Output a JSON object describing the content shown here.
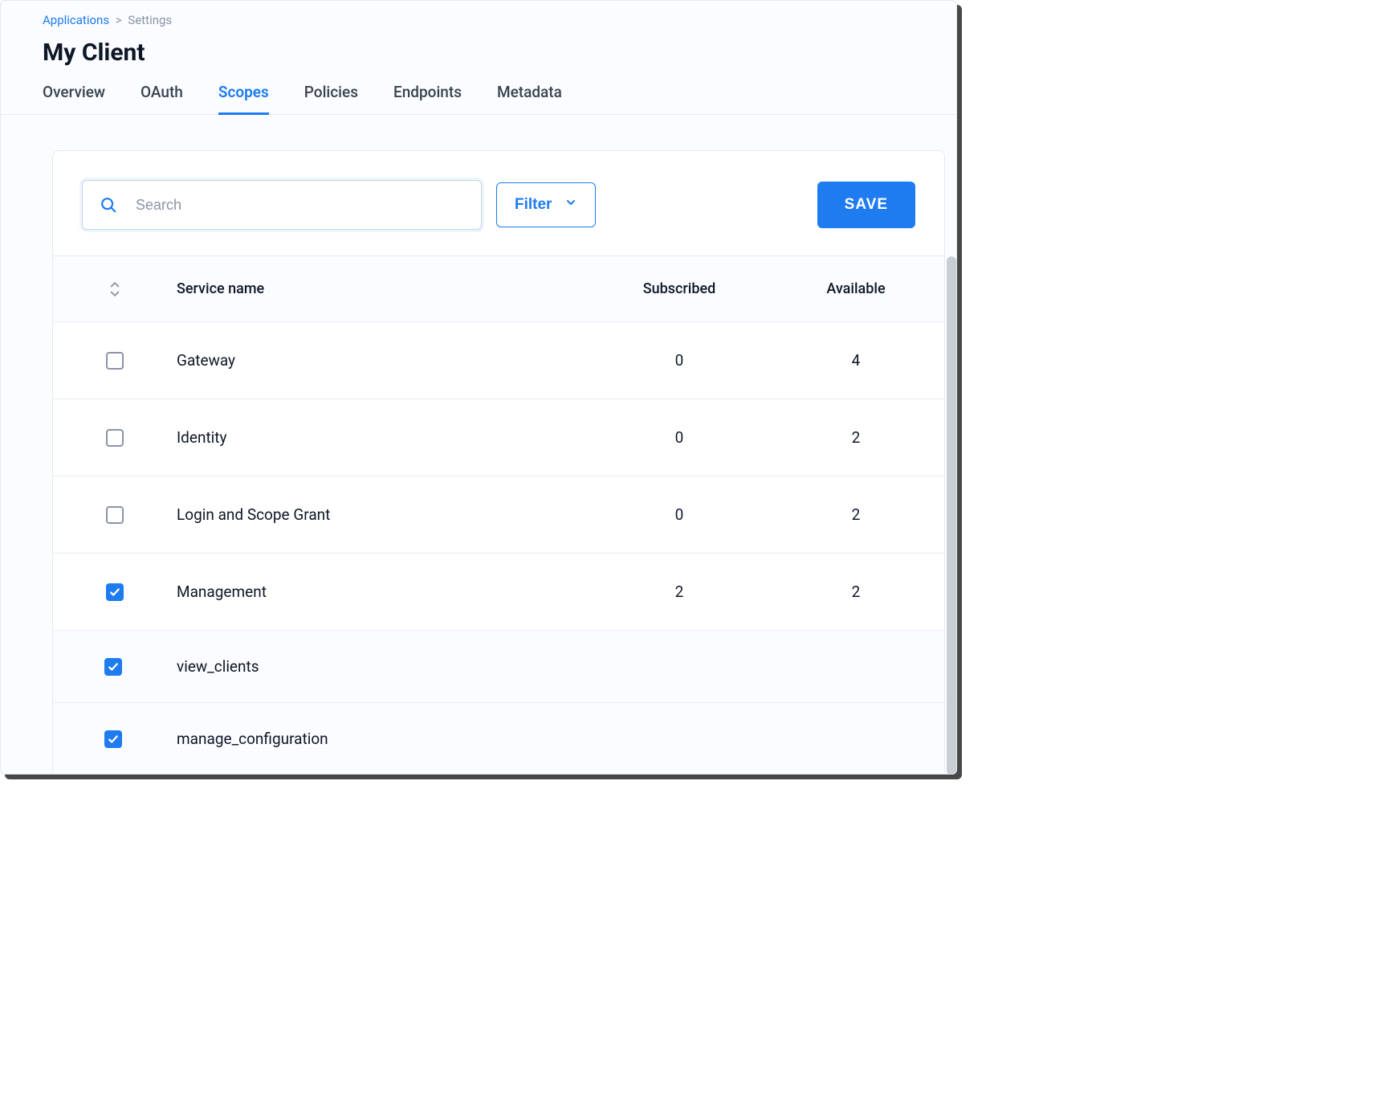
{
  "colors": {
    "primary": "#1e7bf0",
    "text": "#0e1726",
    "muted": "#8a94a6",
    "border": "#e3e9f2",
    "row_border": "#e8edf5",
    "page_bg": "#fafcff",
    "card_bg": "#ffffff",
    "subrow_bg": "#fafcff",
    "scrollbar_thumb": "#c9cdd4"
  },
  "breadcrumb": {
    "root": "Applications",
    "current": "Settings"
  },
  "page_title": "My Client",
  "tabs": [
    {
      "label": "Overview",
      "active": false
    },
    {
      "label": "OAuth",
      "active": false
    },
    {
      "label": "Scopes",
      "active": true
    },
    {
      "label": "Policies",
      "active": false
    },
    {
      "label": "Endpoints",
      "active": false
    },
    {
      "label": "Metadata",
      "active": false
    }
  ],
  "toolbar": {
    "search_placeholder": "Search",
    "search_value": "",
    "filter_label": "Filter",
    "save_label": "SAVE"
  },
  "table": {
    "columns": {
      "service_name": "Service name",
      "subscribed": "Subscribed",
      "available": "Available"
    },
    "rows": [
      {
        "checked": false,
        "name": "Gateway",
        "subscribed": 0,
        "available": 4,
        "expanded": false,
        "children": []
      },
      {
        "checked": false,
        "name": "Identity",
        "subscribed": 0,
        "available": 2,
        "expanded": false,
        "children": []
      },
      {
        "checked": false,
        "name": "Login and Scope Grant",
        "subscribed": 0,
        "available": 2,
        "expanded": false,
        "children": []
      },
      {
        "checked": true,
        "name": "Management",
        "subscribed": 2,
        "available": 2,
        "expanded": true,
        "children": [
          {
            "checked": true,
            "name": "view_clients"
          },
          {
            "checked": true,
            "name": "manage_configuration"
          }
        ]
      }
    ]
  }
}
